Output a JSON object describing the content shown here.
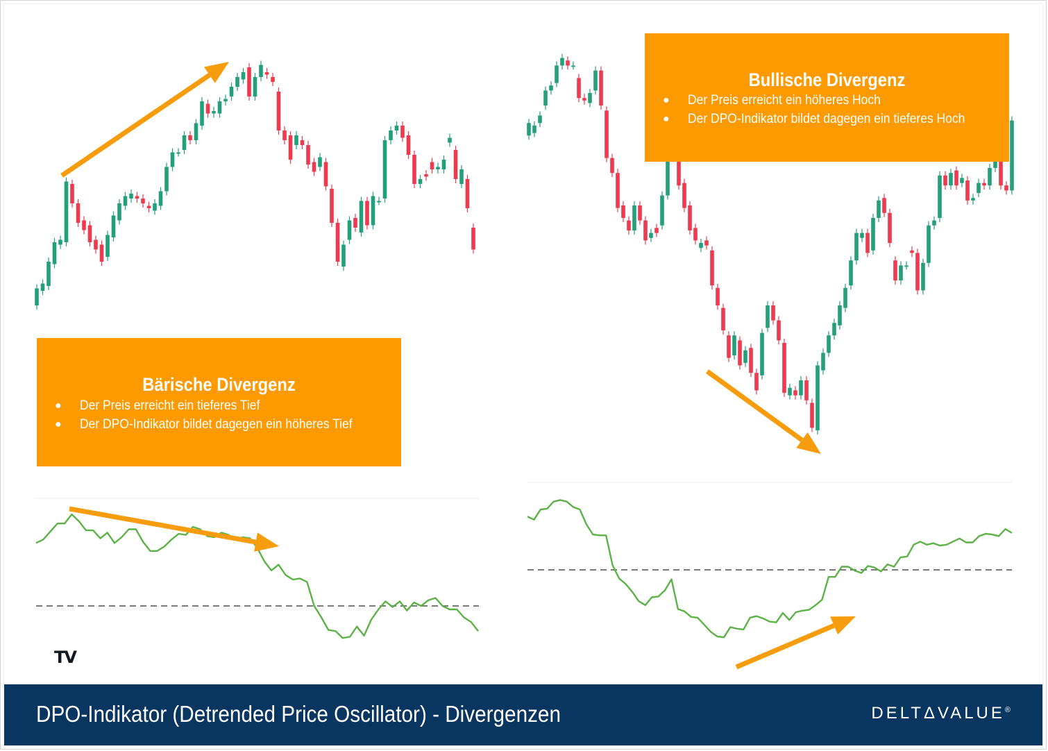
{
  "footer": {
    "title": "DPO-Indikator (Detrended Price Oscillator) - Divergenzen",
    "brand_left": "DELT",
    "brand_mark": "Δ",
    "brand_right": "VALUE",
    "brand_reg": "®"
  },
  "callouts": {
    "bearish": {
      "title": "Bärische Divergenz",
      "bullets": [
        "Der Preis erreicht ein tieferes Tief",
        "Der DPO-Indikator bildet dagegen ein höheres Tief"
      ]
    },
    "bullish": {
      "title": "Bullische Divergenz",
      "bullets": [
        "Der Preis erreicht ein höheres Hoch",
        "Der DPO-Indikator bildet dagegen ein tieferes Hoch"
      ]
    },
    "bullet_char": "●"
  },
  "logo": {
    "text": "TV",
    "name": "tradingview-logo-icon"
  },
  "colors": {
    "up": "#23a07a",
    "down": "#ee3a4f",
    "dpo_line": "#5cb246",
    "arrow": "#f79d0d",
    "callout_bg": "#fe9a01",
    "footer_bg": "#083660",
    "zero_line": "#7a7a7a"
  },
  "chart_data": [
    {
      "type": "candlestick",
      "panel": "left-price",
      "candles": [
        {
          "o": 40,
          "c": 47
        },
        {
          "o": 46,
          "c": 49
        },
        {
          "o": 48,
          "c": 58
        },
        {
          "o": 57,
          "c": 66
        },
        {
          "o": 65,
          "c": 67
        },
        {
          "o": 66,
          "c": 91
        },
        {
          "o": 90,
          "c": 82
        },
        {
          "o": 82,
          "c": 74
        },
        {
          "o": 75,
          "c": 71
        },
        {
          "o": 73,
          "c": 66
        },
        {
          "o": 67,
          "c": 63
        },
        {
          "o": 65,
          "c": 58
        },
        {
          "o": 60,
          "c": 69
        },
        {
          "o": 68,
          "c": 77
        },
        {
          "o": 75,
          "c": 82
        },
        {
          "o": 81,
          "c": 85
        },
        {
          "o": 84,
          "c": 86
        },
        {
          "o": 85,
          "c": 84
        },
        {
          "o": 84,
          "c": 82
        },
        {
          "o": 81,
          "c": 80
        },
        {
          "o": 79,
          "c": 82
        },
        {
          "o": 81,
          "c": 87
        },
        {
          "o": 87,
          "c": 97
        },
        {
          "o": 97,
          "c": 103
        },
        {
          "o": 103,
          "c": 103
        },
        {
          "o": 104,
          "c": 110
        },
        {
          "o": 110,
          "c": 108
        },
        {
          "o": 108,
          "c": 115
        },
        {
          "o": 114,
          "c": 124
        },
        {
          "o": 123,
          "c": 119
        },
        {
          "o": 119,
          "c": 120
        },
        {
          "o": 119,
          "c": 124
        },
        {
          "o": 124,
          "c": 125
        },
        {
          "o": 126,
          "c": 130
        },
        {
          "o": 130,
          "c": 134
        },
        {
          "o": 133,
          "c": 136
        },
        {
          "o": 138,
          "c": 126
        },
        {
          "o": 126,
          "c": 134
        },
        {
          "o": 134,
          "c": 139
        },
        {
          "o": 136,
          "c": 135
        },
        {
          "o": 134,
          "c": 132
        },
        {
          "o": 128,
          "c": 112
        },
        {
          "o": 112,
          "c": 108
        },
        {
          "o": 110,
          "c": 100
        },
        {
          "o": 106,
          "c": 110
        },
        {
          "o": 108,
          "c": 106
        },
        {
          "o": 106,
          "c": 98
        },
        {
          "o": 99,
          "c": 95
        },
        {
          "o": 97,
          "c": 101
        },
        {
          "o": 99,
          "c": 89
        },
        {
          "o": 88,
          "c": 74
        },
        {
          "o": 74,
          "c": 58
        },
        {
          "o": 56,
          "c": 65
        },
        {
          "o": 67,
          "c": 75
        },
        {
          "o": 76,
          "c": 72
        },
        {
          "o": 70,
          "c": 83
        },
        {
          "o": 83,
          "c": 73
        },
        {
          "o": 73,
          "c": 85
        },
        {
          "o": 83,
          "c": 83
        },
        {
          "o": 84,
          "c": 108
        },
        {
          "o": 108,
          "c": 112
        },
        {
          "o": 112,
          "c": 114
        },
        {
          "o": 114,
          "c": 109
        },
        {
          "o": 110,
          "c": 102
        },
        {
          "o": 102,
          "c": 90
        },
        {
          "o": 90,
          "c": 92
        },
        {
          "o": 94,
          "c": 93
        },
        {
          "o": 99,
          "c": 96
        },
        {
          "o": 96,
          "c": 97
        },
        {
          "o": 96,
          "c": 100
        },
        {
          "o": 107,
          "c": 109
        },
        {
          "o": 104,
          "c": 92
        },
        {
          "o": 90,
          "c": 96
        },
        {
          "o": 92,
          "c": 80
        },
        {
          "o": 72,
          "c": 63
        }
      ]
    },
    {
      "type": "line",
      "panel": "left-dpo",
      "zero_line": 0,
      "series": [
        {
          "values": [
            55,
            58,
            65,
            72,
            72,
            80,
            74,
            66,
            66,
            59,
            64,
            55,
            60,
            67,
            67,
            56,
            48,
            48,
            52,
            58,
            63,
            62,
            69,
            67,
            61,
            60,
            64,
            62,
            58,
            60,
            59,
            51,
            39,
            31,
            36,
            27,
            23,
            24,
            21,
            0,
            -10,
            -21,
            -22,
            -28,
            -27,
            -18,
            -26,
            -12,
            -3,
            4,
            -1,
            4,
            -4,
            3,
            0,
            5,
            7,
            0,
            -3,
            -3,
            -10,
            -14,
            -22
          ]
        }
      ]
    },
    {
      "type": "candlestick",
      "panel": "right-price",
      "candles": [
        {
          "o": 108,
          "c": 113
        },
        {
          "o": 109,
          "c": 112
        },
        {
          "o": 113,
          "c": 116
        },
        {
          "o": 120,
          "c": 126
        },
        {
          "o": 126,
          "c": 128
        },
        {
          "o": 129,
          "c": 136
        },
        {
          "o": 136,
          "c": 139
        },
        {
          "o": 138,
          "c": 136
        },
        {
          "o": 136,
          "c": 136
        },
        {
          "o": 131,
          "c": 123
        },
        {
          "o": 123,
          "c": 122
        },
        {
          "o": 121,
          "c": 125
        },
        {
          "o": 126,
          "c": 134
        },
        {
          "o": 134,
          "c": 120
        },
        {
          "o": 118,
          "c": 99
        },
        {
          "o": 99,
          "c": 93
        },
        {
          "o": 93,
          "c": 79
        },
        {
          "o": 80,
          "c": 75
        },
        {
          "o": 74,
          "c": 70
        },
        {
          "o": 70,
          "c": 80
        },
        {
          "o": 80,
          "c": 74
        },
        {
          "o": 74,
          "c": 66
        },
        {
          "o": 67,
          "c": 69
        },
        {
          "o": 71,
          "c": 69
        },
        {
          "o": 72,
          "c": 84
        },
        {
          "o": 84,
          "c": 101
        },
        {
          "o": 100,
          "c": 99
        },
        {
          "o": 98,
          "c": 88
        },
        {
          "o": 89,
          "c": 79
        },
        {
          "o": 80,
          "c": 70
        },
        {
          "o": 71,
          "c": 66
        },
        {
          "o": 63,
          "c": 65
        },
        {
          "o": 66,
          "c": 64
        },
        {
          "o": 62,
          "c": 48
        },
        {
          "o": 47,
          "c": 40
        },
        {
          "o": 39,
          "c": 30
        },
        {
          "o": 28,
          "c": 19
        },
        {
          "o": 20,
          "c": 28
        },
        {
          "o": 26,
          "c": 16
        },
        {
          "o": 17,
          "c": 22
        },
        {
          "o": 23,
          "c": 13
        },
        {
          "o": 13,
          "c": 6
        },
        {
          "o": 12,
          "c": 29
        },
        {
          "o": 31,
          "c": 40
        },
        {
          "o": 40,
          "c": 34
        },
        {
          "o": 34,
          "c": 26
        },
        {
          "o": 25,
          "c": 5
        },
        {
          "o": 4,
          "c": 7
        },
        {
          "o": 6,
          "c": 4
        },
        {
          "o": 4,
          "c": 10
        },
        {
          "o": 10,
          "c": 2
        },
        {
          "o": 1,
          "c": -9
        },
        {
          "o": -10,
          "c": 16
        },
        {
          "o": 14,
          "c": 21
        },
        {
          "o": 21,
          "c": 28
        },
        {
          "o": 28,
          "c": 33
        },
        {
          "o": 32,
          "c": 40
        },
        {
          "o": 39,
          "c": 47
        },
        {
          "o": 48,
          "c": 58
        },
        {
          "o": 58,
          "c": 69
        },
        {
          "o": 67,
          "c": 69
        },
        {
          "o": 69,
          "c": 61
        },
        {
          "o": 62,
          "c": 75
        },
        {
          "o": 75,
          "c": 82
        },
        {
          "o": 83,
          "c": 77
        },
        {
          "o": 77,
          "c": 65
        },
        {
          "o": 58,
          "c": 50
        },
        {
          "o": 50,
          "c": 56
        },
        {
          "o": 56,
          "c": 56
        },
        {
          "o": 62,
          "c": 61
        },
        {
          "o": 61,
          "c": 46
        },
        {
          "o": 46,
          "c": 57
        },
        {
          "o": 57,
          "c": 72
        },
        {
          "o": 72,
          "c": 74
        },
        {
          "o": 75,
          "c": 92
        },
        {
          "o": 92,
          "c": 88
        },
        {
          "o": 88,
          "c": 93
        },
        {
          "o": 94,
          "c": 88
        },
        {
          "o": 89,
          "c": 91
        },
        {
          "o": 90,
          "c": 82
        },
        {
          "o": 82,
          "c": 83
        },
        {
          "o": 85,
          "c": 89
        },
        {
          "o": 89,
          "c": 88
        },
        {
          "o": 88,
          "c": 95
        },
        {
          "o": 95,
          "c": 99
        },
        {
          "o": 99,
          "c": 88
        },
        {
          "o": 88,
          "c": 86
        },
        {
          "o": 86,
          "c": 114
        }
      ]
    },
    {
      "type": "line",
      "panel": "right-dpo",
      "zero_line": 0,
      "series": [
        {
          "values": [
            68,
            64,
            77,
            78,
            87,
            89,
            87,
            80,
            77,
            58,
            45,
            44,
            44,
            6,
            -11,
            -18,
            -28,
            -40,
            -45,
            -35,
            -34,
            -26,
            -12,
            -50,
            -53,
            -60,
            -61,
            -70,
            -79,
            -85,
            -86,
            -73,
            -75,
            -76,
            -61,
            -59,
            -62,
            -66,
            -67,
            -55,
            -64,
            -54,
            -52,
            -51,
            -45,
            -38,
            -9,
            -9,
            4,
            4,
            -1,
            -4,
            5,
            3,
            -2,
            7,
            4,
            16,
            17,
            32,
            36,
            32,
            34,
            31,
            32,
            36,
            40,
            35,
            35,
            43,
            46,
            45,
            43,
            52,
            47
          ]
        }
      ]
    }
  ]
}
